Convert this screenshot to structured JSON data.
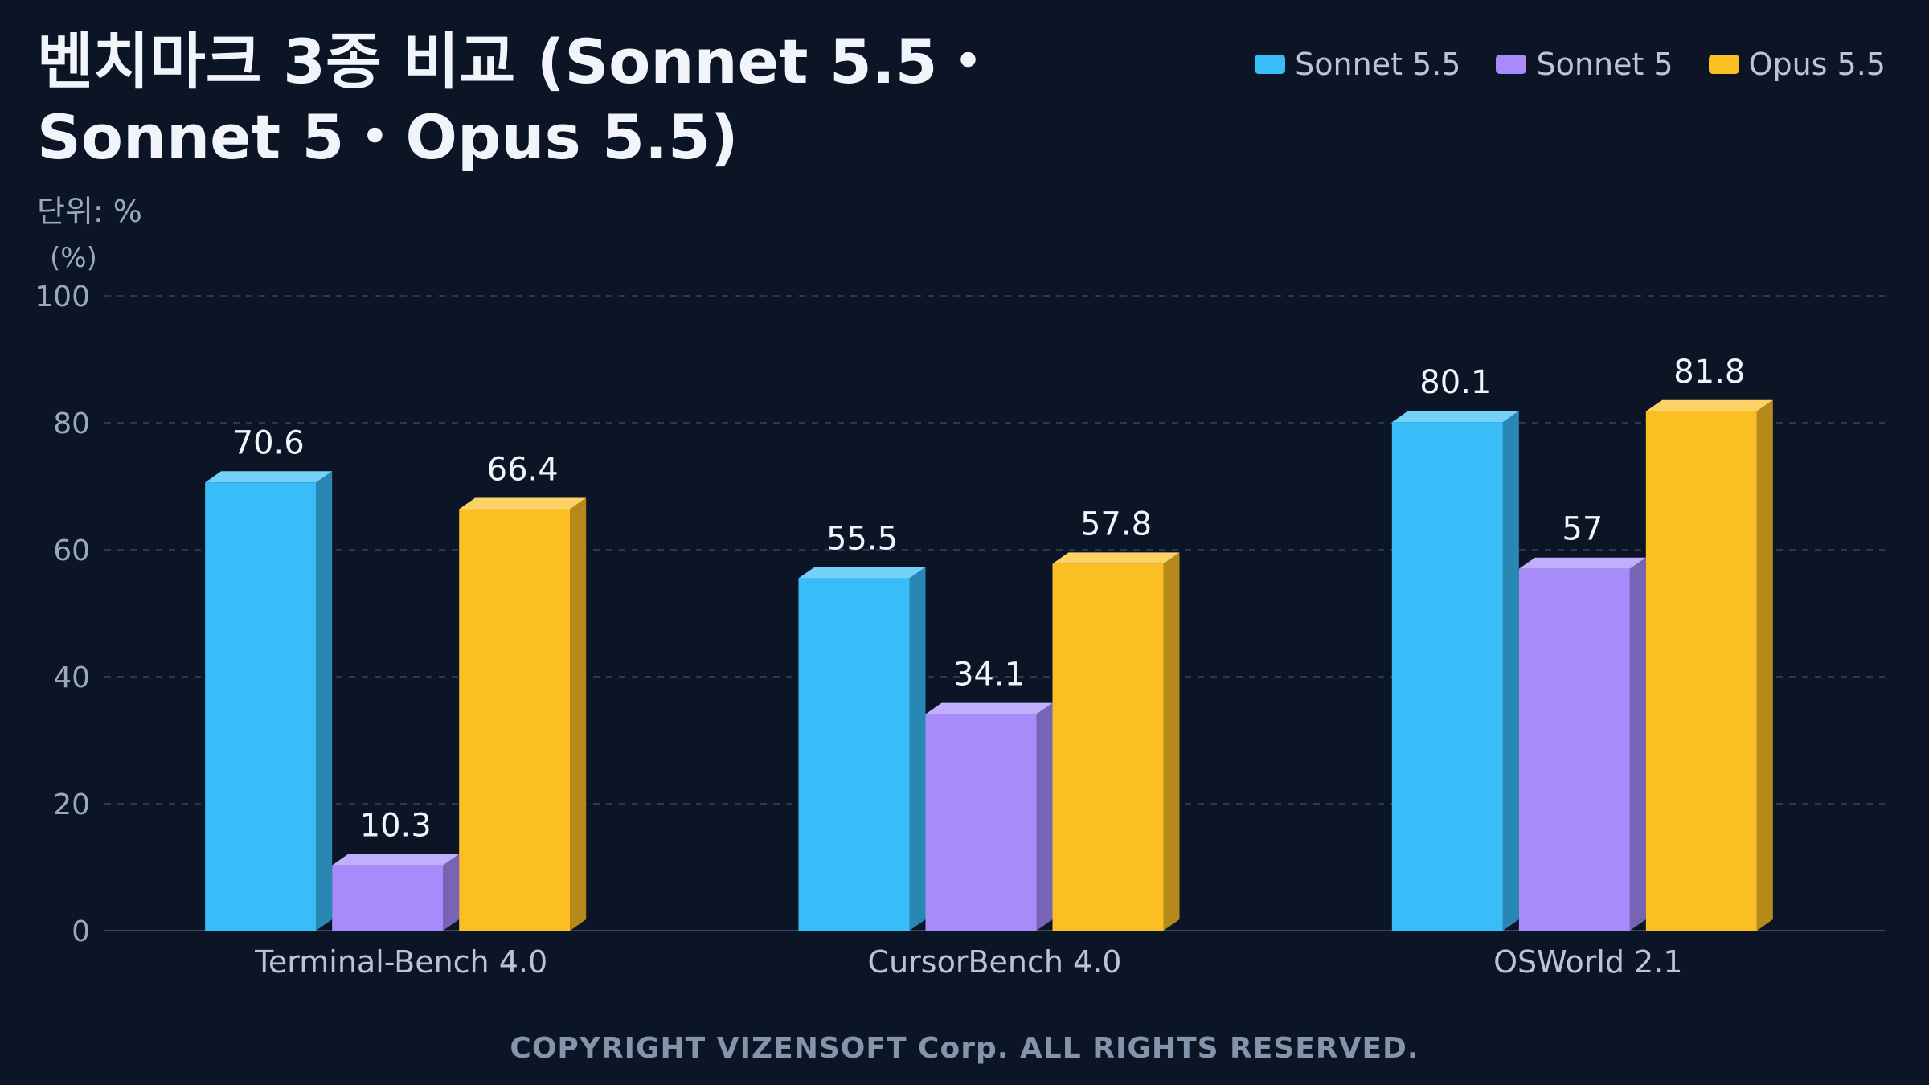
{
  "colors": {
    "background": "#0c1526",
    "series": [
      "#38bdf8",
      "#a78bfa",
      "#fbbf24"
    ]
  },
  "footer": "COPYRIGHT VIZENSOFT Corp. ALL RIGHTS RESERVED.",
  "chart_data": {
    "type": "bar",
    "title": "벤치마크 3종 비교 (Sonnet 5.5・Sonnet 5・Opus 5.5)",
    "subtitle": "단위: %",
    "ylabel": "(%)",
    "xlabel": "",
    "ylim": [
      0,
      100
    ],
    "yticks": [
      0,
      20,
      40,
      60,
      80,
      100
    ],
    "grid": true,
    "legend_position": "top-right",
    "categories": [
      "Terminal-Bench 4.0",
      "CursorBench 4.0",
      "OSWorld 2.1"
    ],
    "series": [
      {
        "name": "Sonnet 5.5",
        "values": [
          70.6,
          55.5,
          80.1
        ]
      },
      {
        "name": "Sonnet 5",
        "values": [
          10.3,
          34.1,
          57
        ]
      },
      {
        "name": "Opus 5.5",
        "values": [
          66.4,
          57.8,
          81.8
        ]
      }
    ]
  }
}
